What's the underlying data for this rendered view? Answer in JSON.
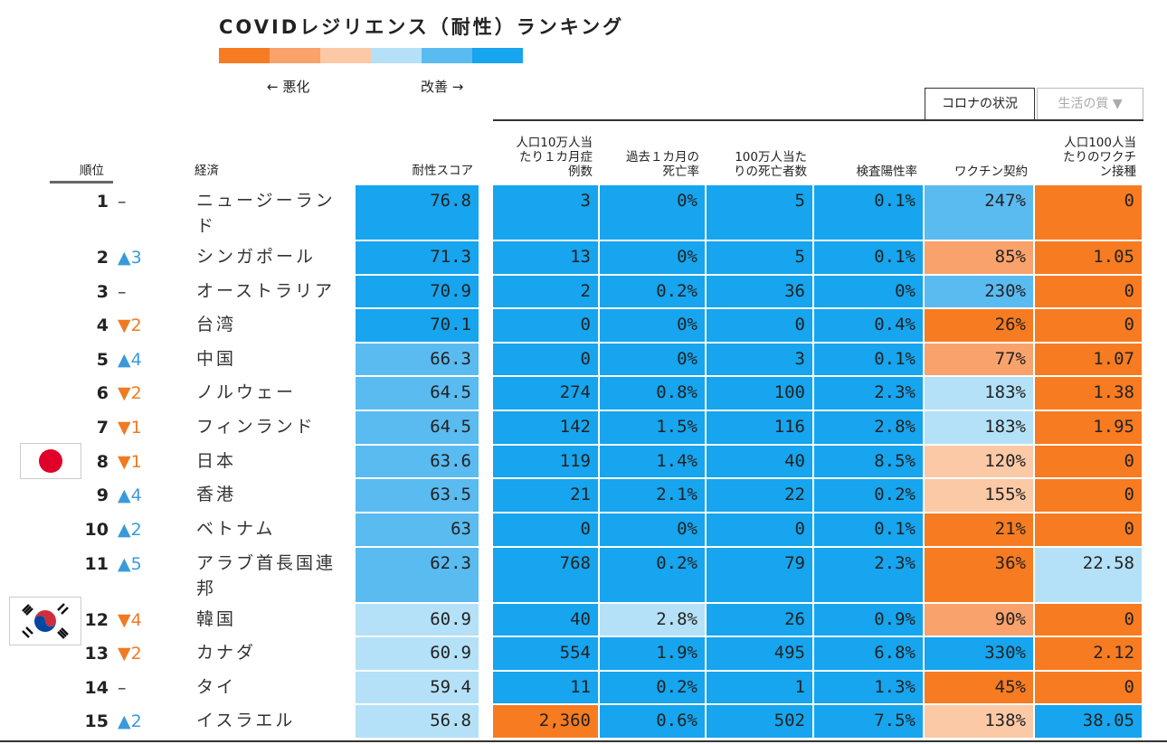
{
  "title": "COVIDレジリエンス（耐性）ランキング",
  "legend": {
    "colors": [
      "#f77b21",
      "#f9a26b",
      "#fcc9a7",
      "#b4e1f7",
      "#5abbf1",
      "#16a5ee"
    ],
    "worse": "← 悪化",
    "better": "改善 →"
  },
  "tabs": [
    "コロナの状況",
    "生活の質 ▼"
  ],
  "columns": {
    "rank": "順位",
    "economy": "経済",
    "score": "耐性スコア",
    "metrics": [
      "人口10万人当\nたり１カ月症\n例数",
      "過去１カ月の\n死亡率",
      "100万人当た\nりの死亡者数",
      "検査陽性率",
      "ワクチン契約",
      "人口100人当\nたりのワクチ\nン接種"
    ]
  },
  "rows": [
    {
      "rank": "1",
      "change": "–",
      "name": "ニュージーランド",
      "values": [
        "76.8",
        "3",
        "0%",
        "5",
        "0.1%",
        "247%",
        "0"
      ],
      "colors": [
        "#16a5ee",
        "#16a5ee",
        "#16a5ee",
        "#16a5ee",
        "#16a5ee",
        "#5abbf1",
        "#f77b21"
      ]
    },
    {
      "rank": "2",
      "change": "▲3",
      "name": "シンガポール",
      "values": [
        "71.3",
        "13",
        "0%",
        "5",
        "0.1%",
        "85%",
        "1.05"
      ],
      "colors": [
        "#16a5ee",
        "#16a5ee",
        "#16a5ee",
        "#16a5ee",
        "#16a5ee",
        "#f9a26b",
        "#f77b21"
      ]
    },
    {
      "rank": "3",
      "change": "–",
      "name": "オーストラリア",
      "values": [
        "70.9",
        "2",
        "0.2%",
        "36",
        "0%",
        "230%",
        "0"
      ],
      "colors": [
        "#16a5ee",
        "#16a5ee",
        "#16a5ee",
        "#16a5ee",
        "#16a5ee",
        "#5abbf1",
        "#f77b21"
      ]
    },
    {
      "rank": "4",
      "change": "▼2",
      "name": "台湾",
      "values": [
        "70.1",
        "0",
        "0%",
        "0",
        "0.4%",
        "26%",
        "0"
      ],
      "colors": [
        "#16a5ee",
        "#16a5ee",
        "#16a5ee",
        "#16a5ee",
        "#16a5ee",
        "#f77b21",
        "#f77b21"
      ]
    },
    {
      "rank": "5",
      "change": "▲4",
      "name": "中国",
      "values": [
        "66.3",
        "0",
        "0%",
        "3",
        "0.1%",
        "77%",
        "1.07"
      ],
      "colors": [
        "#5abbf1",
        "#16a5ee",
        "#16a5ee",
        "#16a5ee",
        "#16a5ee",
        "#f9a26b",
        "#f77b21"
      ]
    },
    {
      "rank": "6",
      "change": "▼2",
      "name": "ノルウェー",
      "values": [
        "64.5",
        "274",
        "0.8%",
        "100",
        "2.3%",
        "183%",
        "1.38"
      ],
      "colors": [
        "#5abbf1",
        "#16a5ee",
        "#16a5ee",
        "#16a5ee",
        "#16a5ee",
        "#b4e1f7",
        "#f77b21"
      ]
    },
    {
      "rank": "7",
      "change": "▼1",
      "name": "フィンランド",
      "values": [
        "64.5",
        "142",
        "1.5%",
        "116",
        "2.8%",
        "183%",
        "1.95"
      ],
      "colors": [
        "#5abbf1",
        "#16a5ee",
        "#16a5ee",
        "#16a5ee",
        "#16a5ee",
        "#b4e1f7",
        "#f77b21"
      ]
    },
    {
      "rank": "8",
      "change": "▼1",
      "name": "日本",
      "values": [
        "63.6",
        "119",
        "1.4%",
        "40",
        "8.5%",
        "120%",
        "0"
      ],
      "colors": [
        "#5abbf1",
        "#16a5ee",
        "#16a5ee",
        "#16a5ee",
        "#16a5ee",
        "#fcc9a7",
        "#f77b21"
      ]
    },
    {
      "rank": "9",
      "change": "▲4",
      "name": "香港",
      "values": [
        "63.5",
        "21",
        "2.1%",
        "22",
        "0.2%",
        "155%",
        "0"
      ],
      "colors": [
        "#5abbf1",
        "#16a5ee",
        "#16a5ee",
        "#16a5ee",
        "#16a5ee",
        "#fcc9a7",
        "#f77b21"
      ]
    },
    {
      "rank": "10",
      "change": "▲2",
      "name": "ベトナム",
      "values": [
        "63",
        "0",
        "0%",
        "0",
        "0.1%",
        "21%",
        "0"
      ],
      "colors": [
        "#5abbf1",
        "#16a5ee",
        "#16a5ee",
        "#16a5ee",
        "#16a5ee",
        "#f77b21",
        "#f77b21"
      ]
    },
    {
      "rank": "11",
      "change": "▲5",
      "name": "アラブ首長国連邦",
      "values": [
        "62.3",
        "768",
        "0.2%",
        "79",
        "2.3%",
        "36%",
        "22.58"
      ],
      "colors": [
        "#5abbf1",
        "#16a5ee",
        "#16a5ee",
        "#16a5ee",
        "#16a5ee",
        "#f77b21",
        "#b4e1f7"
      ]
    },
    {
      "rank": "12",
      "change": "▼4",
      "name": "韓国",
      "values": [
        "60.9",
        "40",
        "2.8%",
        "26",
        "0.9%",
        "90%",
        "0"
      ],
      "colors": [
        "#b4e1f7",
        "#16a5ee",
        "#b4e1f7",
        "#16a5ee",
        "#16a5ee",
        "#f9a26b",
        "#f77b21"
      ]
    },
    {
      "rank": "13",
      "change": "▼2",
      "name": "カナダ",
      "values": [
        "60.9",
        "554",
        "1.9%",
        "495",
        "6.8%",
        "330%",
        "2.12"
      ],
      "colors": [
        "#b4e1f7",
        "#16a5ee",
        "#16a5ee",
        "#16a5ee",
        "#16a5ee",
        "#16a5ee",
        "#f77b21"
      ]
    },
    {
      "rank": "14",
      "change": "–",
      "name": "タイ",
      "values": [
        "59.4",
        "11",
        "0.2%",
        "1",
        "1.3%",
        "45%",
        "0"
      ],
      "colors": [
        "#b4e1f7",
        "#16a5ee",
        "#16a5ee",
        "#16a5ee",
        "#16a5ee",
        "#f77b21",
        "#f77b21"
      ]
    },
    {
      "rank": "15",
      "change": "▲2",
      "name": "イスラエル",
      "values": [
        "56.8",
        "2,360",
        "0.6%",
        "502",
        "7.5%",
        "138%",
        "38.05"
      ],
      "colors": [
        "#b4e1f7",
        "#f77b21",
        "#16a5ee",
        "#16a5ee",
        "#16a5ee",
        "#fcc9a7",
        "#16a5ee"
      ]
    }
  ]
}
